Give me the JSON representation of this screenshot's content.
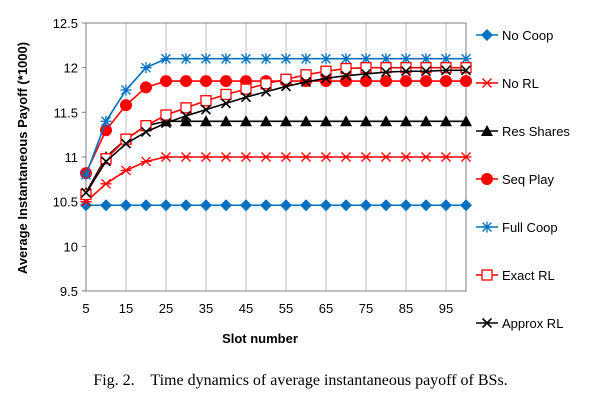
{
  "caption": {
    "label": "Fig. 2.",
    "text": "Time dynamics of average instantaneous payoff of BSs."
  },
  "chart_data": {
    "type": "line",
    "xlabel": "Slot number",
    "ylabel": "Average Instantaneous Payoff (*1000)",
    "xlim": [
      5,
      100
    ],
    "ylim": [
      9.5,
      12.5
    ],
    "yticks": [
      "9.5",
      "10",
      "10.5",
      "11",
      "11.5",
      "12",
      "12.5"
    ],
    "xticks": [
      "5",
      "15",
      "25",
      "35",
      "45",
      "55",
      "65",
      "75",
      "85",
      "95"
    ],
    "grid": "vertical",
    "legend_position": "right",
    "x": [
      5,
      10,
      15,
      20,
      25,
      30,
      35,
      40,
      45,
      50,
      55,
      60,
      65,
      70,
      75,
      80,
      85,
      90,
      95,
      100
    ],
    "series": [
      {
        "name": "No Coop",
        "color": "#0070C0",
        "marker": "diamond",
        "values": [
          10.46,
          10.46,
          10.46,
          10.46,
          10.46,
          10.46,
          10.46,
          10.46,
          10.46,
          10.46,
          10.46,
          10.46,
          10.46,
          10.46,
          10.46,
          10.46,
          10.46,
          10.46,
          10.46,
          10.46
        ]
      },
      {
        "name": "No RL",
        "color": "#FF0000",
        "marker": "star",
        "values": [
          10.5,
          10.7,
          10.85,
          10.95,
          11.0,
          11.0,
          11.0,
          11.0,
          11.0,
          11.0,
          11.0,
          11.0,
          11.0,
          11.0,
          11.0,
          11.0,
          11.0,
          11.0,
          11.0,
          11.0
        ]
      },
      {
        "name": "Res Shares",
        "color": "#000000",
        "marker": "triangle",
        "values": [
          10.6,
          11.0,
          11.2,
          11.35,
          11.4,
          11.4,
          11.4,
          11.4,
          11.4,
          11.4,
          11.4,
          11.4,
          11.4,
          11.4,
          11.4,
          11.4,
          11.4,
          11.4,
          11.4,
          11.4
        ]
      },
      {
        "name": "Seq Play",
        "color": "#FF0000",
        "marker": "circle",
        "values": [
          10.82,
          11.3,
          11.58,
          11.78,
          11.85,
          11.85,
          11.85,
          11.85,
          11.85,
          11.85,
          11.85,
          11.85,
          11.85,
          11.85,
          11.85,
          11.85,
          11.85,
          11.85,
          11.85,
          11.85
        ]
      },
      {
        "name": "Full Coop",
        "color": "#0070C0",
        "marker": "asterisk",
        "values": [
          10.8,
          11.4,
          11.75,
          12.0,
          12.1,
          12.1,
          12.1,
          12.1,
          12.1,
          12.1,
          12.1,
          12.1,
          12.1,
          12.1,
          12.1,
          12.1,
          12.1,
          12.1,
          12.1,
          12.1
        ]
      },
      {
        "name": "Exact RL",
        "color": "#FF0000",
        "marker": "square",
        "values": [
          10.58,
          10.98,
          11.2,
          11.35,
          11.47,
          11.55,
          11.63,
          11.7,
          11.76,
          11.82,
          11.87,
          11.92,
          11.96,
          11.99,
          12.0,
          12.0,
          12.0,
          12.0,
          12.0,
          12.0
        ]
      },
      {
        "name": "Approx RL",
        "color": "#000000",
        "marker": "x",
        "values": [
          10.6,
          10.95,
          11.15,
          11.28,
          11.38,
          11.46,
          11.53,
          11.6,
          11.67,
          11.73,
          11.79,
          11.84,
          11.88,
          11.91,
          11.93,
          11.95,
          11.96,
          11.96,
          11.97,
          11.97
        ]
      }
    ]
  }
}
